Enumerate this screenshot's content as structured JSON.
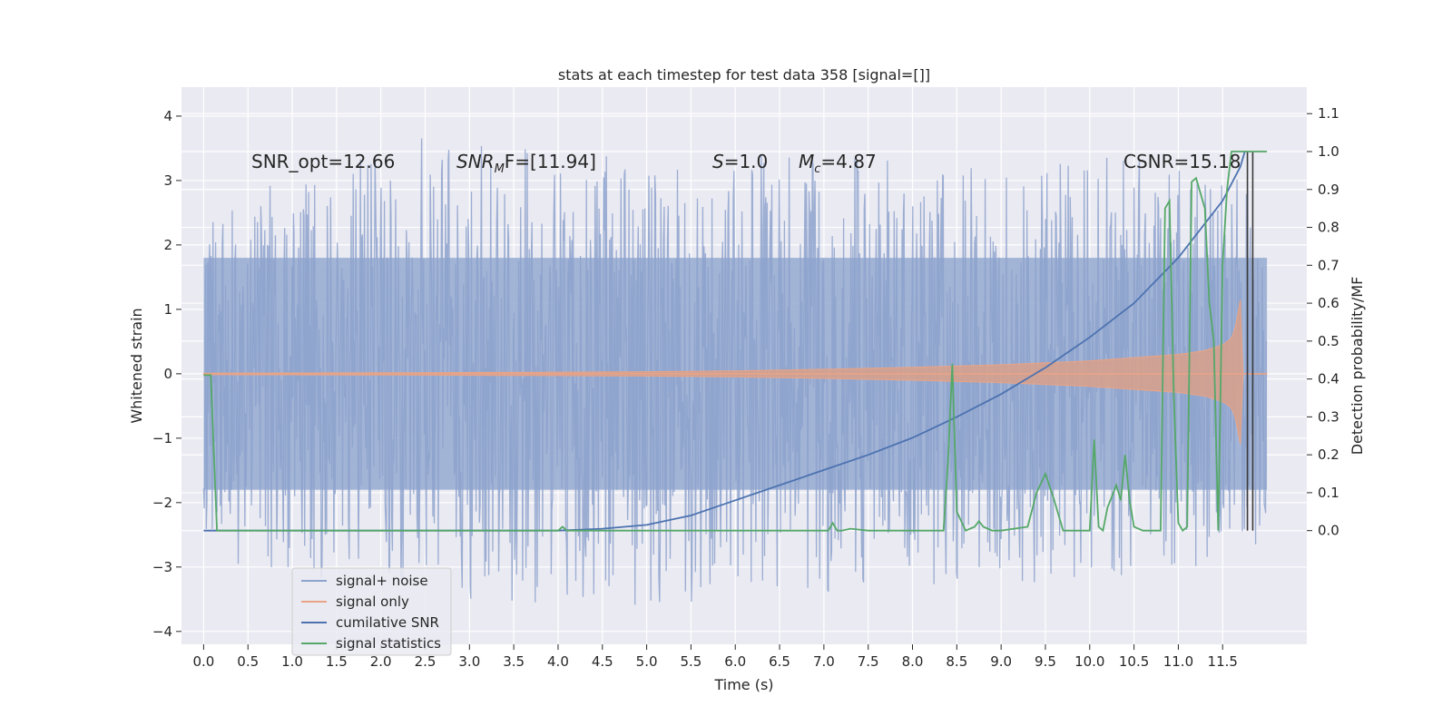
{
  "chart_data": {
    "type": "line",
    "title": "stats at each timestep for test data 358 [signal=[]]",
    "xlabel": "Time (s)",
    "ylabel_left": "Whitened strain",
    "ylabel_right": "Detection probability/MF",
    "xlim": [
      -0.25,
      12.45
    ],
    "ylim_left": [
      -4.2,
      4.45
    ],
    "ylim_right": [
      -0.3,
      1.17
    ],
    "x_ticks": [
      "0.0",
      "0.5",
      "1.0",
      "1.5",
      "2.0",
      "2.5",
      "3.0",
      "3.5",
      "4.0",
      "4.5",
      "5.0",
      "5.5",
      "6.0",
      "6.5",
      "7.0",
      "7.5",
      "8.0",
      "8.5",
      "9.0",
      "9.5",
      "10.0",
      "10.5",
      "11.0",
      "11.5"
    ],
    "y_ticks_left": [
      "4",
      "3",
      "2",
      "1",
      "0",
      "−1",
      "−2",
      "−3",
      "−4"
    ],
    "y_ticks_right": [
      "1.1",
      "1.0",
      "0.9",
      "0.8",
      "0.7",
      "0.6",
      "0.5",
      "0.4",
      "0.3",
      "0.2",
      "0.1",
      "0.0"
    ],
    "grid": true,
    "annotations": {
      "snr_opt": "SNR_opt=12.66",
      "snr_mf_main": "SNR",
      "snr_mf_sub": "M",
      "snr_mf_tail": "F=[11.94]",
      "s_var": "S",
      "s_val": "=1.0",
      "mc_var": "M",
      "mc_sub": "c",
      "mc_val": "=4.87",
      "csnr": "CSNR=15.18"
    },
    "legend": {
      "placement": "lower-left",
      "entries": [
        {
          "label": "signal+ noise",
          "color": "#8da2cc"
        },
        {
          "label": "signal only",
          "color": "#e9a486"
        },
        {
          "label": "cumilative SNR",
          "color": "#4c72b0"
        },
        {
          "label": "signal statistics",
          "color": "#55a868"
        }
      ]
    },
    "series": [
      {
        "name": "signal+ noise",
        "axis": "left",
        "x_range": [
          0.0,
          12.0
        ],
        "envelope_max": [
          [
            0.0,
            2.7
          ],
          [
            1.0,
            3.0
          ],
          [
            2.4,
            3.7
          ],
          [
            5.0,
            3.5
          ],
          [
            8.0,
            3.4
          ],
          [
            10.0,
            3.4
          ],
          [
            11.0,
            3.5
          ],
          [
            11.45,
            3.0
          ],
          [
            11.7,
            3.2
          ],
          [
            12.0,
            2.5
          ]
        ],
        "envelope_min": [
          [
            0.0,
            -2.4
          ],
          [
            0.5,
            -3.2
          ],
          [
            3.5,
            -3.6
          ],
          [
            5.0,
            -3.6
          ],
          [
            7.0,
            -3.4
          ],
          [
            11.0,
            -3.2
          ],
          [
            12.0,
            -2.3
          ]
        ],
        "core_band": [
          -1.8,
          1.8
        ]
      },
      {
        "name": "signal only",
        "axis": "left",
        "x": [
          0.0,
          1.0,
          2.0,
          3.0,
          4.0,
          5.0,
          6.0,
          7.0,
          8.0,
          9.0,
          10.0,
          10.5,
          11.0,
          11.3,
          11.5,
          11.6,
          11.65,
          11.7,
          11.72,
          12.0
        ],
        "amplitude": [
          0.01,
          0.012,
          0.015,
          0.02,
          0.025,
          0.032,
          0.045,
          0.07,
          0.1,
          0.14,
          0.2,
          0.25,
          0.3,
          0.36,
          0.45,
          0.55,
          0.75,
          1.15,
          0.0,
          0.0
        ]
      },
      {
        "name": "cumilative SNR",
        "axis": "right",
        "x": [
          0.0,
          4.0,
          4.5,
          5.0,
          5.5,
          6.0,
          6.5,
          7.0,
          7.5,
          8.0,
          8.5,
          9.0,
          9.5,
          10.0,
          10.5,
          11.0,
          11.5,
          11.7,
          11.75
        ],
        "values": [
          0.0,
          0.0,
          0.005,
          0.015,
          0.04,
          0.08,
          0.12,
          0.16,
          0.2,
          0.245,
          0.3,
          0.36,
          0.43,
          0.51,
          0.6,
          0.72,
          0.87,
          0.96,
          1.0
        ]
      },
      {
        "name": "signal statistics",
        "axis": "right",
        "x": [
          0.0,
          0.08,
          0.15,
          0.2,
          4.0,
          4.05,
          4.1,
          4.15,
          7.05,
          7.1,
          7.15,
          7.2,
          7.3,
          7.5,
          8.35,
          8.4,
          8.45,
          8.5,
          8.6,
          8.7,
          8.75,
          8.8,
          8.9,
          9.0,
          9.3,
          9.4,
          9.5,
          9.6,
          9.7,
          10.0,
          10.05,
          10.1,
          10.15,
          10.2,
          10.3,
          10.35,
          10.4,
          10.45,
          10.5,
          10.6,
          10.8,
          10.85,
          10.9,
          10.95,
          11.0,
          11.05,
          11.1,
          11.15,
          11.2,
          11.3,
          11.35,
          11.4,
          11.45,
          11.5,
          11.55,
          11.6,
          11.65,
          11.7,
          11.75,
          12.0
        ],
        "values": [
          0.41,
          0.41,
          0.0,
          0.0,
          0.0,
          0.01,
          0.0,
          0.0,
          0.0,
          0.02,
          0.0,
          0.0,
          0.005,
          0.0,
          0.0,
          0.18,
          0.44,
          0.05,
          0.0,
          0.01,
          0.025,
          0.01,
          0.0,
          0.0,
          0.01,
          0.1,
          0.15,
          0.08,
          0.0,
          0.0,
          0.24,
          0.01,
          0.0,
          0.06,
          0.12,
          0.08,
          0.2,
          0.08,
          0.01,
          0.0,
          0.0,
          0.85,
          0.87,
          0.35,
          0.02,
          0.0,
          0.01,
          0.92,
          0.93,
          0.85,
          0.6,
          0.5,
          0.0,
          0.7,
          0.9,
          1.0,
          1.0,
          1.0,
          1.0,
          1.0
        ]
      }
    ],
    "vertical_markers_x": [
      11.78,
      11.84
    ]
  }
}
